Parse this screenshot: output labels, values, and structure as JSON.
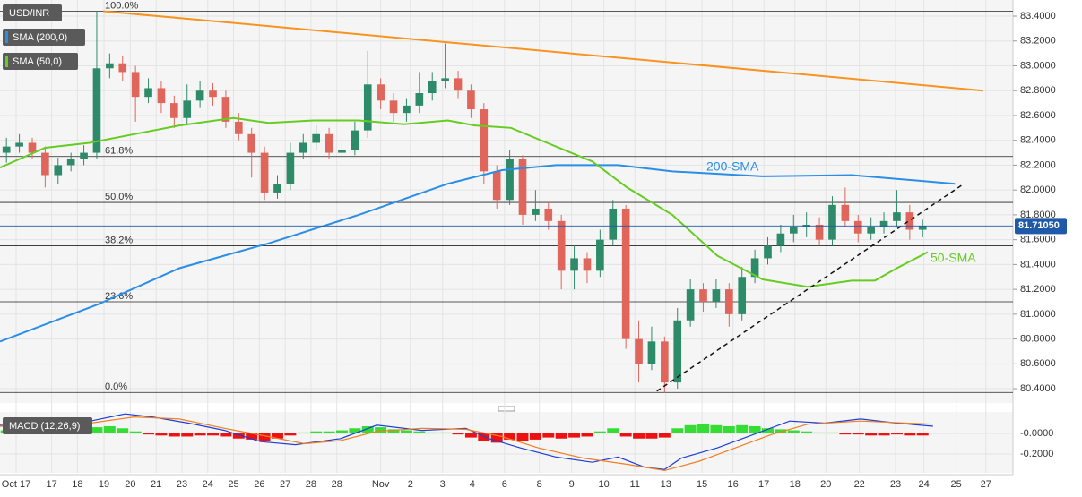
{
  "chart_data": [
    {
      "type": "candlestick",
      "title": "USD/INR",
      "up_color": "#2e8b6a",
      "down_color": "#e0665c",
      "xlim": [
        -0.5,
        78
      ],
      "ylim": [
        80.285,
        83.53
      ],
      "xticks": [
        {
          "value": 0.75,
          "label": "Oct 17"
        },
        {
          "value": 3.5,
          "label": "17"
        },
        {
          "value": 5.5,
          "label": "18"
        },
        {
          "value": 7.56,
          "label": "19"
        },
        {
          "value": 9.6,
          "label": "20"
        },
        {
          "value": 11.6,
          "label": "21"
        },
        {
          "value": 13.6,
          "label": "23"
        },
        {
          "value": 15.6,
          "label": "24"
        },
        {
          "value": 17.6,
          "label": "25"
        },
        {
          "value": 19.6,
          "label": "26"
        },
        {
          "value": 21.6,
          "label": "27"
        },
        {
          "value": 23.6,
          "label": "28"
        },
        {
          "value": 25.6,
          "label": "28"
        },
        {
          "value": 29,
          "label": "Nov"
        },
        {
          "value": 31.3,
          "label": "2"
        },
        {
          "value": 33.8,
          "label": "3"
        },
        {
          "value": 36.1,
          "label": "4"
        },
        {
          "value": 38.6,
          "label": "6"
        },
        {
          "value": 41.3,
          "label": "8"
        },
        {
          "value": 43.8,
          "label": "9"
        },
        {
          "value": 46.3,
          "label": "10"
        },
        {
          "value": 48.7,
          "label": "11"
        },
        {
          "value": 51.1,
          "label": "13"
        },
        {
          "value": 53.9,
          "label": "15"
        },
        {
          "value": 56.3,
          "label": "16"
        },
        {
          "value": 58.7,
          "label": "17"
        },
        {
          "value": 61.1,
          "label": "18"
        },
        {
          "value": 63.5,
          "label": "20"
        },
        {
          "value": 66.1,
          "label": "22"
        },
        {
          "value": 68.9,
          "label": "23"
        },
        {
          "value": 71.1,
          "label": "24"
        },
        {
          "value": 73.6,
          "label": "25"
        },
        {
          "value": 75.9,
          "label": "27"
        }
      ],
      "yticks": [
        {
          "value": 83.4,
          "label": "83.4000"
        },
        {
          "value": 83.2,
          "label": "83.2000"
        },
        {
          "value": 83.0,
          "label": "83.0000"
        },
        {
          "value": 82.8,
          "label": "82.8000"
        },
        {
          "value": 82.6,
          "label": "82.6000"
        },
        {
          "value": 82.4,
          "label": "82.4000"
        },
        {
          "value": 82.2,
          "label": "82.2000"
        },
        {
          "value": 82.0,
          "label": "82.0000"
        },
        {
          "value": 81.8,
          "label": "81.8000"
        },
        {
          "value": 81.6,
          "label": "81.6000"
        },
        {
          "value": 81.4,
          "label": "81.4000"
        },
        {
          "value": 81.2,
          "label": "81.2000"
        },
        {
          "value": 81.0,
          "label": "81.0000"
        },
        {
          "value": 80.8,
          "label": "80.8000"
        },
        {
          "value": 80.6,
          "label": "80.6000"
        },
        {
          "value": 80.4,
          "label": "80.4000"
        }
      ],
      "open": [
        82.3,
        82.35,
        82.38,
        82.3,
        82.12,
        82.2,
        82.25,
        82.3,
        82.98,
        83.02,
        82.95,
        82.75,
        82.82,
        82.7,
        82.58,
        82.72,
        82.8,
        82.75,
        82.55,
        82.45,
        82.3,
        81.98,
        82.05,
        82.3,
        82.38,
        82.45,
        82.3,
        82.32,
        82.48,
        82.85,
        82.72,
        82.62,
        82.68,
        82.78,
        82.88,
        82.9,
        82.8,
        82.65,
        82.15,
        81.92,
        82.25,
        81.8,
        81.85,
        81.75,
        81.35,
        81.45,
        81.35,
        81.6,
        81.85,
        80.8,
        80.6,
        80.78,
        80.45,
        80.95,
        81.2,
        81.1,
        81.2,
        81.0,
        81.3,
        81.45,
        81.55,
        81.65,
        81.7,
        81.72,
        81.6,
        81.88,
        81.75,
        81.65,
        81.7,
        81.75,
        81.82,
        81.68
      ],
      "high": [
        82.42,
        82.45,
        82.42,
        82.35,
        82.26,
        82.3,
        82.36,
        83.44,
        83.1,
        83.08,
        83.0,
        82.9,
        82.88,
        82.76,
        82.85,
        82.88,
        82.86,
        82.8,
        82.62,
        82.5,
        82.35,
        82.12,
        82.38,
        82.45,
        82.52,
        82.5,
        82.4,
        82.55,
        83.12,
        82.9,
        82.78,
        82.74,
        82.95,
        82.95,
        83.18,
        82.96,
        82.85,
        82.7,
        82.2,
        82.32,
        82.28,
        82.0,
        81.9,
        81.8,
        81.55,
        81.5,
        81.68,
        81.92,
        81.88,
        80.95,
        80.9,
        80.82,
        81.05,
        81.28,
        81.25,
        81.28,
        81.25,
        81.38,
        81.52,
        81.62,
        81.72,
        81.8,
        81.82,
        81.78,
        81.95,
        82.02,
        81.8,
        81.78,
        81.82,
        82.0,
        81.88,
        81.76
      ],
      "low": [
        82.22,
        82.3,
        82.25,
        82.02,
        82.05,
        82.15,
        82.2,
        82.25,
        82.9,
        82.88,
        82.55,
        82.7,
        82.62,
        82.5,
        82.52,
        82.66,
        82.68,
        82.5,
        82.4,
        82.1,
        81.92,
        81.93,
        82.0,
        82.25,
        82.32,
        82.25,
        82.26,
        82.28,
        82.42,
        82.65,
        82.55,
        82.55,
        82.62,
        82.72,
        82.82,
        82.74,
        82.58,
        82.05,
        81.85,
        81.88,
        81.72,
        81.75,
        81.68,
        81.2,
        81.2,
        81.25,
        81.3,
        81.55,
        80.72,
        80.45,
        80.55,
        80.37,
        80.4,
        80.9,
        81.02,
        81.05,
        80.9,
        80.95,
        81.25,
        81.4,
        81.5,
        81.58,
        81.62,
        81.55,
        81.55,
        81.7,
        81.58,
        81.6,
        81.65,
        81.7,
        81.6,
        81.62
      ],
      "close": [
        82.35,
        82.38,
        82.3,
        82.12,
        82.2,
        82.25,
        82.3,
        82.98,
        83.02,
        82.95,
        82.75,
        82.82,
        82.7,
        82.58,
        82.72,
        82.8,
        82.75,
        82.55,
        82.45,
        82.3,
        81.98,
        82.05,
        82.3,
        82.38,
        82.45,
        82.3,
        82.32,
        82.48,
        82.85,
        82.72,
        82.62,
        82.68,
        82.78,
        82.88,
        82.9,
        82.8,
        82.65,
        82.15,
        81.92,
        82.25,
        81.8,
        81.85,
        81.75,
        81.35,
        81.45,
        81.35,
        81.6,
        81.85,
        80.8,
        80.6,
        80.78,
        80.45,
        80.95,
        81.2,
        81.1,
        81.2,
        81.0,
        81.3,
        81.45,
        81.55,
        81.65,
        81.7,
        81.72,
        81.6,
        81.88,
        81.75,
        81.65,
        81.7,
        81.75,
        81.82,
        81.68,
        81.71
      ],
      "series": [
        {
          "name": "SMA (200,0)",
          "label": "200-SMA",
          "color": "#2a8ee6",
          "x": [
            -0.5,
            7.1,
            13.4,
            20.3,
            27.3,
            34.2,
            38.4,
            42.6,
            47.4,
            51.6,
            58.6,
            65.5,
            69,
            73.5
          ],
          "values": [
            80.78,
            81.08,
            81.37,
            81.57,
            81.8,
            82.05,
            82.16,
            82.2,
            82.2,
            82.15,
            82.11,
            82.12,
            82.09,
            82.05
          ]
        },
        {
          "name": "SMA (50,0)",
          "label": "50-SMA",
          "color": "#66cc22",
          "x": [
            -0.5,
            3,
            6.45,
            9.9,
            13.4,
            17.6,
            20.3,
            23.8,
            27.3,
            30.8,
            34.2,
            36.3,
            39.1,
            41.9,
            45.4,
            48.1,
            51.6,
            55.1,
            58.6,
            62.1,
            65.5,
            67.3,
            69,
            71.4
          ],
          "values": [
            82.18,
            82.34,
            82.38,
            82.45,
            82.52,
            82.58,
            82.54,
            82.56,
            82.56,
            82.53,
            82.56,
            82.52,
            82.5,
            82.38,
            82.23,
            82.02,
            81.8,
            81.47,
            81.28,
            81.22,
            81.27,
            81.27,
            81.37,
            81.5
          ]
        }
      ],
      "trendlines": [
        {
          "color": "#f7931e",
          "dashed": false,
          "x": [
            7.5,
            75.7
          ],
          "values": [
            83.44,
            82.8
          ]
        },
        {
          "color": "#111111",
          "dashed": true,
          "x": [
            50.4,
            74.2
          ],
          "values": [
            80.38,
            82.05
          ]
        }
      ],
      "levels": [
        {
          "label": "100.0%",
          "value": 83.44
        },
        {
          "label": "61.8%",
          "value": 82.27
        },
        {
          "label": "50.0%",
          "value": 81.9
        },
        {
          "label": "38.2%",
          "value": 81.55
        },
        {
          "label": "23.6%",
          "value": 81.1
        },
        {
          "label": "0.0%",
          "value": 80.37
        }
      ],
      "last": {
        "value": 81.7105,
        "label": "81.71050",
        "color": "#1e5aa8"
      }
    },
    {
      "type": "macd",
      "title": "MACD (12,26,9)",
      "xlim": [
        -0.5,
        78
      ],
      "ylim": [
        -0.383,
        0.209
      ],
      "yticks": [
        {
          "value": 0,
          "label": "-0.0000"
        },
        {
          "value": -0.2,
          "label": "-0.2000"
        }
      ],
      "up_color": "#33dd33",
      "down_color": "#ee1111",
      "histogram": [
        0.03,
        0.03,
        0.02,
        0.02,
        0.03,
        0.03,
        0.03,
        0.06,
        0.07,
        0.05,
        0.02,
        -0.01,
        -0.02,
        -0.03,
        -0.03,
        -0.02,
        -0.02,
        -0.03,
        -0.05,
        -0.06,
        -0.07,
        -0.05,
        -0.02,
        0.01,
        0.02,
        0.02,
        0.03,
        0.05,
        0.07,
        0.06,
        0.04,
        0.03,
        0.02,
        0.01,
        0.01,
        -0.01,
        -0.04,
        -0.07,
        -0.09,
        -0.06,
        -0.07,
        -0.06,
        -0.04,
        -0.05,
        -0.04,
        -0.03,
        0.02,
        0.05,
        -0.03,
        -0.05,
        -0.05,
        -0.04,
        0.05,
        0.08,
        0.09,
        0.08,
        0.07,
        0.08,
        0.07,
        0.05,
        0.04,
        0.03,
        0.02,
        0.01,
        0.01,
        -0.01,
        -0.01,
        -0.02,
        -0.02,
        -0.01,
        -0.02,
        -0.02
      ],
      "series": [
        {
          "color": "#1e3fd8",
          "x": [
            -0.5,
            3,
            6.5,
            9.2,
            11.3,
            14.1,
            16.9,
            19.7,
            22.4,
            25.9,
            28.7,
            32.2,
            35.6,
            37.4,
            39.8,
            42.6,
            45.4,
            47.4,
            49.5,
            51,
            52.3,
            55.1,
            57.9,
            60.7,
            63.4,
            66.2,
            69,
            71.8
          ],
          "values": [
            0.08,
            0.05,
            0.12,
            0.19,
            0.16,
            0.1,
            0.03,
            -0.08,
            -0.11,
            -0.05,
            0.08,
            0.03,
            0.05,
            -0.05,
            -0.14,
            -0.23,
            -0.28,
            -0.23,
            -0.33,
            -0.35,
            -0.24,
            -0.14,
            -0.01,
            0.12,
            0.1,
            0.14,
            0.1,
            0.07
          ]
        },
        {
          "color": "#f07f20",
          "x": [
            -0.5,
            6.5,
            9.9,
            13.4,
            16.9,
            20.3,
            23.1,
            25.9,
            28.7,
            32.2,
            35.6,
            38.4,
            41.2,
            44.7,
            48.1,
            51,
            53.7,
            56.5,
            59.3,
            62.1,
            66.2,
            71.8
          ],
          "values": [
            0.07,
            0.1,
            0.16,
            0.14,
            0.05,
            -0.03,
            -0.1,
            -0.07,
            0.02,
            0.05,
            0.04,
            -0.03,
            -0.14,
            -0.24,
            -0.3,
            -0.36,
            -0.27,
            -0.14,
            -0.01,
            0.09,
            0.12,
            0.09
          ]
        }
      ]
    }
  ]
}
